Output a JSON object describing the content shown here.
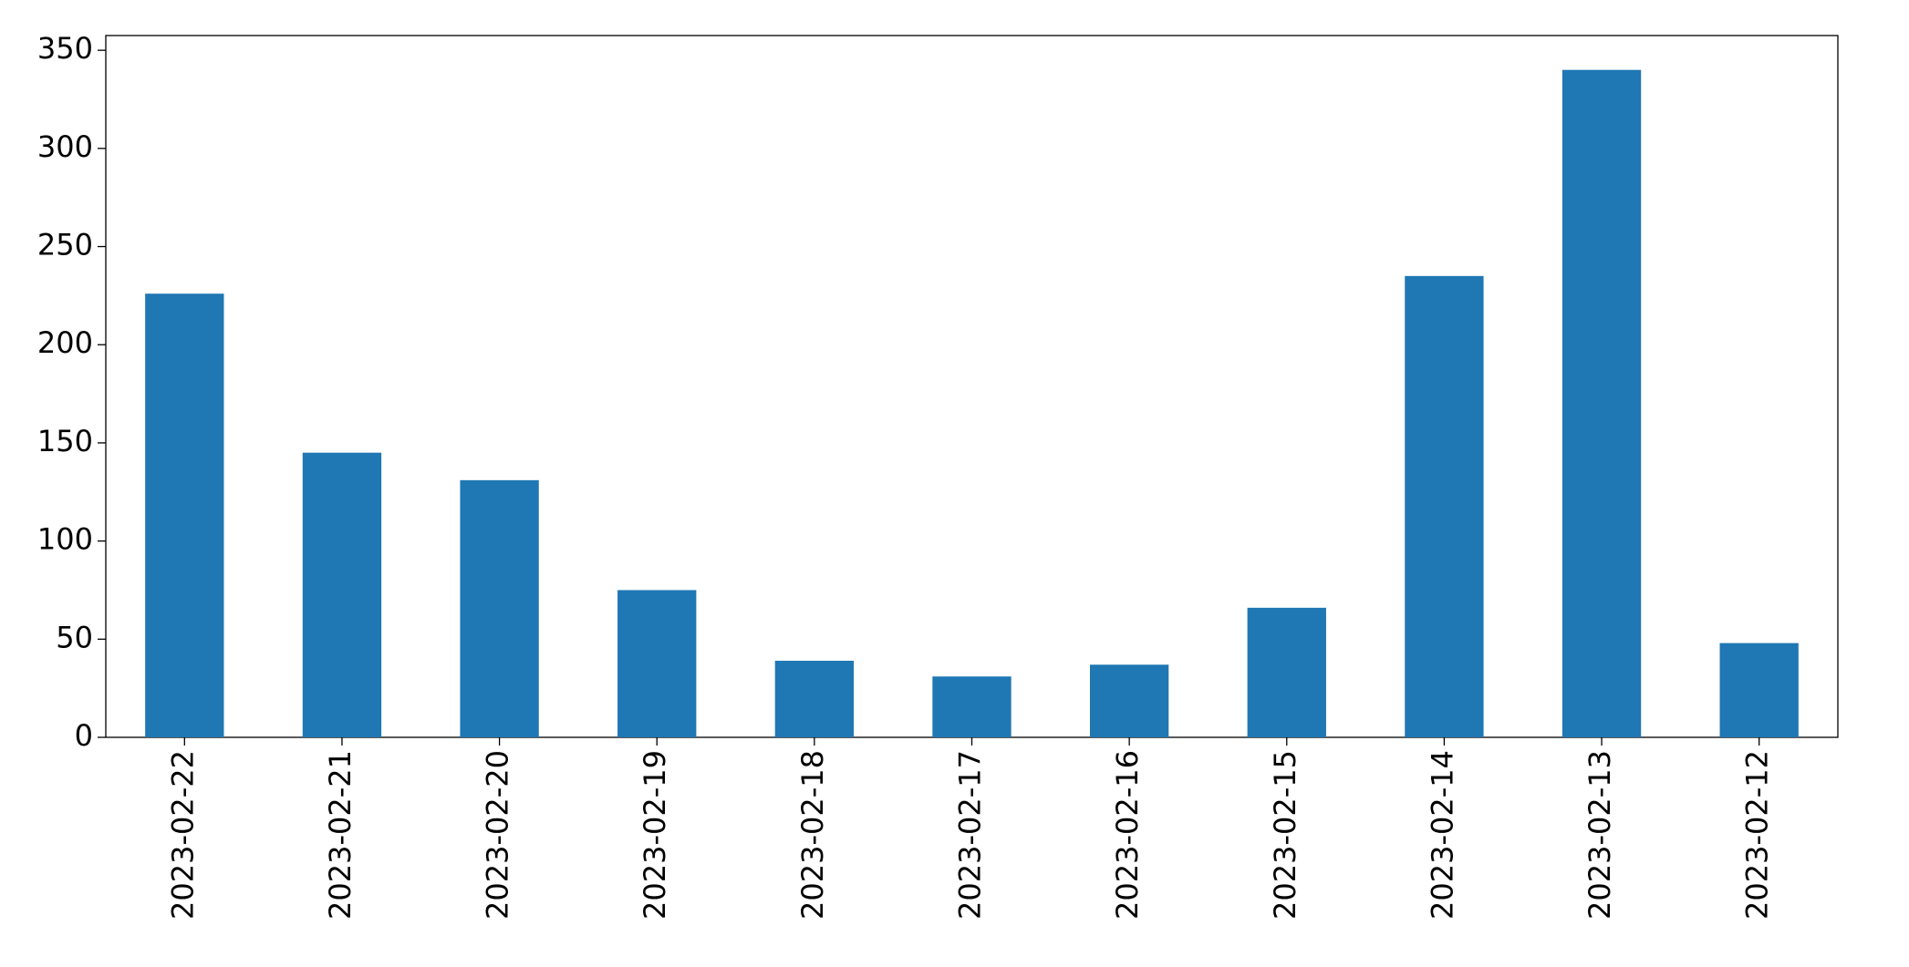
{
  "chart_data": {
    "type": "bar",
    "categories": [
      "2023-02-22",
      "2023-02-21",
      "2023-02-20",
      "2023-02-19",
      "2023-02-18",
      "2023-02-17",
      "2023-02-16",
      "2023-02-15",
      "2023-02-14",
      "2023-02-13",
      "2023-02-12"
    ],
    "values": [
      226,
      145,
      131,
      75,
      39,
      31,
      37,
      66,
      235,
      340,
      48
    ],
    "color": "#1f77b4",
    "ylim": [
      0,
      357.5
    ],
    "yticks": [
      0,
      50,
      100,
      150,
      200,
      250,
      300,
      350
    ],
    "grid": false
  }
}
